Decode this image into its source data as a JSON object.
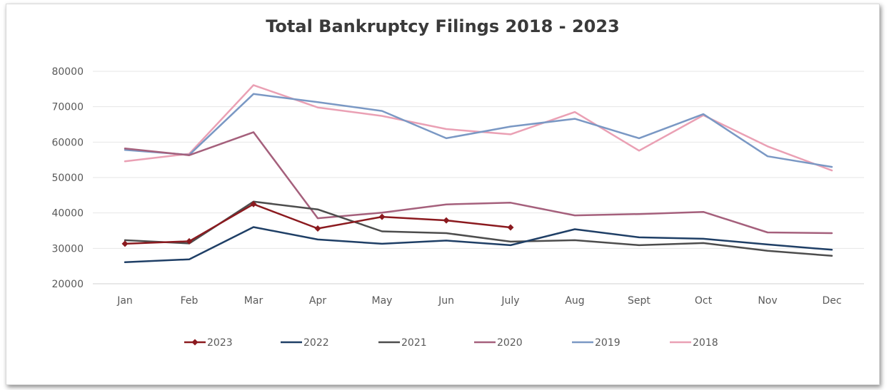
{
  "chart_data": {
    "type": "line",
    "title": "Total Bankruptcy Filings 2018 - 2023",
    "xlabel": "",
    "ylabel": "",
    "categories": [
      "Jan",
      "Feb",
      "Mar",
      "Apr",
      "May",
      "Jun",
      "July",
      "Aug",
      "Sept",
      "Oct",
      "Nov",
      "Dec"
    ],
    "ylim": [
      20000,
      80000
    ],
    "yticks": [
      "20000",
      "30000",
      "40000",
      "50000",
      "60000",
      "70000",
      "80000"
    ],
    "grid": true,
    "legend_position": "bottom",
    "series": [
      {
        "name": "2023",
        "color": "#8b1a1f",
        "marker": "diamond",
        "values": [
          31300,
          32000,
          42500,
          35600,
          38900,
          37900,
          35900,
          null,
          null,
          null,
          null,
          null
        ]
      },
      {
        "name": "2022",
        "color": "#1f3f66",
        "marker": "none",
        "values": [
          26100,
          26900,
          36000,
          32500,
          31300,
          32200,
          30900,
          35400,
          33100,
          32700,
          31100,
          29600
        ]
      },
      {
        "name": "2021",
        "color": "#4d4d4d",
        "marker": "none",
        "values": [
          32300,
          31400,
          43200,
          41000,
          34800,
          34300,
          31900,
          32300,
          30900,
          31500,
          29300,
          27900
        ]
      },
      {
        "name": "2020",
        "color": "#a5607c",
        "marker": "none",
        "values": [
          58200,
          56300,
          62800,
          38500,
          40100,
          42400,
          42900,
          39300,
          39700,
          40300,
          34500,
          34300
        ]
      },
      {
        "name": "2019",
        "color": "#7a98c4",
        "marker": "none",
        "values": [
          57800,
          56400,
          73600,
          71300,
          68800,
          61100,
          64400,
          66600,
          61100,
          67900,
          56000,
          53000
        ]
      },
      {
        "name": "2018",
        "color": "#eaa0b4",
        "marker": "none",
        "values": [
          54600,
          56700,
          76100,
          69800,
          67400,
          63700,
          62200,
          68500,
          57600,
          67600,
          58800,
          52000
        ]
      }
    ]
  }
}
